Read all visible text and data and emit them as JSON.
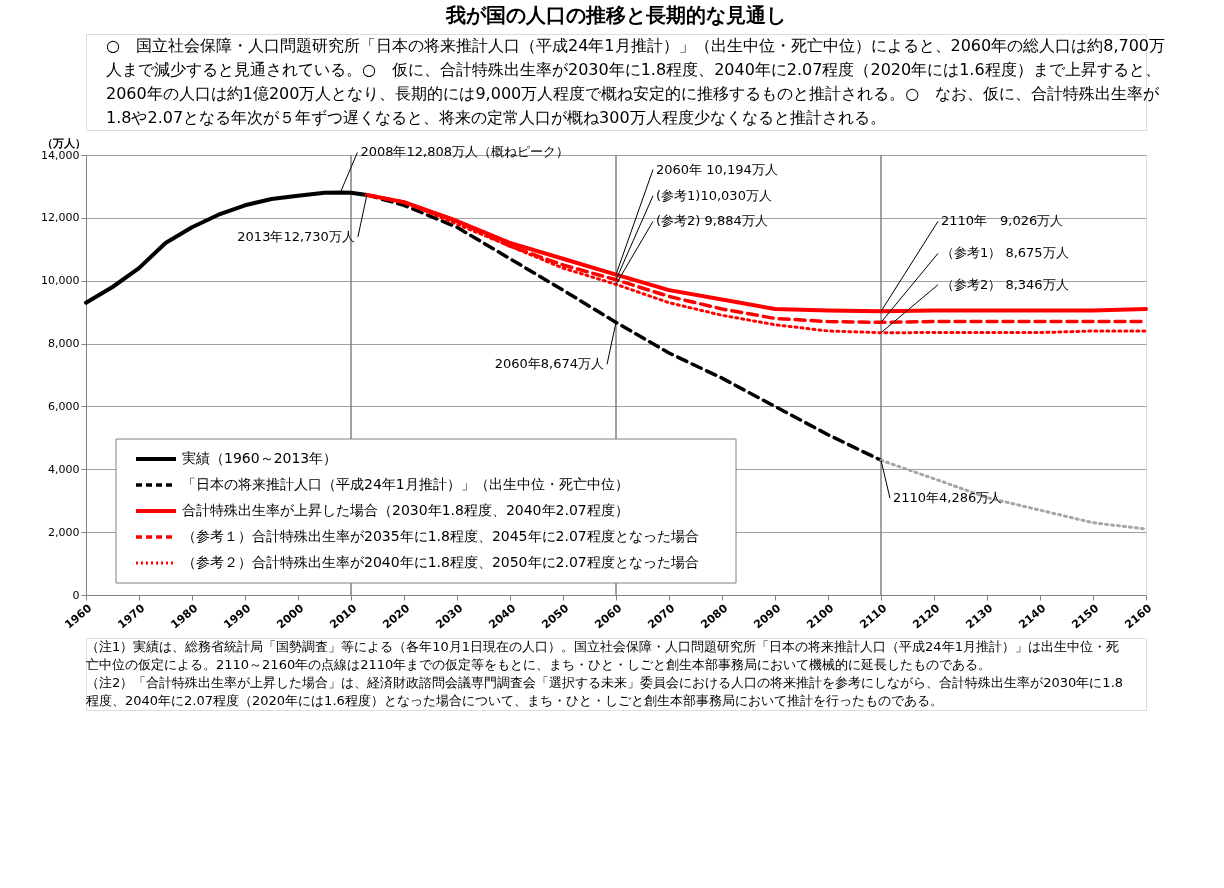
{
  "chart_data": {
    "type": "line",
    "title": "我が国の人口の推移と長期的な見通し",
    "subtitle": "○　国立社会保障・人口問題研究所「日本の将来推計人口（平成24年1月推計）」（出生中位・死亡中位）によると、2060年の総人口は約8,700万人まで減少すると見通されている。○　仮に、合計特殊出生率が2030年に1.8程度、2040年に2.07程度（2020年には1.6程度）まで上昇すると、2060年の人口は約1億200万人となり、長期的には9,000万人程度で概ね安定的に推移するものと推計される。○　なお、仮に、合計特殊出生率が1.8や2.07となる年次が５年ずつ遅くなると、将来の定常人口が概ね300万人程度少なくなると推計される。",
    "ylabel": "（万人）",
    "xlim": [
      1960,
      2160
    ],
    "xticks": [
      1960,
      1970,
      1980,
      1990,
      2000,
      2010,
      2020,
      2030,
      2040,
      2050,
      2060,
      2070,
      2080,
      2090,
      2100,
      2110,
      2120,
      2130,
      2140,
      2150,
      2160
    ],
    "ylim": [
      0,
      14000
    ],
    "yticks": [
      0,
      {
        "value": 2000,
        "label": "2,000"
      },
      {
        "value": 4000,
        "label": "4,000"
      },
      {
        "value": 6000,
        "label": "6,000"
      },
      {
        "value": 8000,
        "label": "8,000"
      },
      {
        "value": 10000,
        "label": "10,000"
      },
      {
        "value": 12000,
        "label": "12,000"
      },
      {
        "value": 14000,
        "label": "14,000"
      }
    ],
    "grid": "y",
    "legend": "bottom left",
    "series": [
      {
        "name": "実績（1960～2013年）",
        "color": "#000000",
        "line_style": "solid",
        "x": [
          1960,
          1965,
          1970,
          1975,
          1980,
          1985,
          1990,
          1995,
          2000,
          2005,
          2008,
          2010,
          2013
        ],
        "values": [
          9300,
          9800,
          10400,
          11200,
          11700,
          12100,
          12400,
          12600,
          12700,
          12800,
          12808,
          12800,
          12730
        ]
      },
      {
        "name": "「日本の将来推計人口（平成24年1月推計）」（出生中位・死亡中位）",
        "color": "#000000",
        "line_style": "dashed",
        "x": [
          2013,
          2020,
          2030,
          2040,
          2050,
          2060,
          2070,
          2080,
          2090,
          2100,
          2110
        ],
        "values": [
          12730,
          12400,
          11700,
          10700,
          9700,
          8674,
          7700,
          6900,
          6000,
          5100,
          4286
        ]
      },
      {
        "color": "#a6a6a6",
        "line_style": "dotted",
        "x": [
          2110,
          2120,
          2130,
          2140,
          2150,
          2160
        ],
        "values": [
          4286,
          3700,
          3100,
          2700,
          2300,
          2100
        ]
      },
      {
        "name": "合計特殊出生率が上昇した場合（2030年1.8程度、2040年2.07程度）",
        "color": "#ff0000",
        "line_style": "solid",
        "x": [
          2013,
          2020,
          2030,
          2040,
          2050,
          2060,
          2070,
          2080,
          2090,
          2100,
          2110,
          2120,
          2130,
          2140,
          2150,
          2160
        ],
        "values": [
          12730,
          12500,
          11900,
          11200,
          10700,
          10194,
          9700,
          9400,
          9100,
          9050,
          9026,
          9050,
          9050,
          9050,
          9050,
          9100
        ]
      },
      {
        "name": "（参考１）合計特殊出生率が2035年に1.8程度、2045年に2.07程度となった場合",
        "color": "#ff0000",
        "line_style": "dashed",
        "x": [
          2013,
          2020,
          2030,
          2040,
          2050,
          2060,
          2070,
          2080,
          2090,
          2100,
          2110,
          2120,
          2130,
          2140,
          2150,
          2160
        ],
        "values": [
          12730,
          12500,
          11900,
          11100,
          10500,
          10030,
          9500,
          9100,
          8800,
          8700,
          8675,
          8700,
          8700,
          8700,
          8700,
          8700
        ]
      },
      {
        "name": "（参考２）合計特殊出生率が2040年に1.8程度、2050年に2.07程度となった場合",
        "color": "#ff0000",
        "line_style": "dotted",
        "x": [
          2013,
          2020,
          2030,
          2040,
          2050,
          2060,
          2070,
          2080,
          2090,
          2100,
          2110,
          2120,
          2130,
          2140,
          2150,
          2160
        ],
        "values": [
          12730,
          12500,
          11800,
          11100,
          10400,
          9884,
          9300,
          8900,
          8600,
          8400,
          8346,
          8350,
          8350,
          8350,
          8400,
          8400
        ]
      }
    ],
    "ref_lines": [
      {
        "axis": "x",
        "value": 2010,
        "color": "#808080"
      },
      {
        "axis": "x",
        "value": 2060,
        "color": "#808080"
      },
      {
        "axis": "x",
        "value": 2110,
        "color": "#808080"
      }
    ],
    "annotations": [
      {
        "text": "2008年12,808万人（概ねピーク）",
        "x": 2008,
        "y": 12808
      },
      {
        "text": "2013年12,730万人",
        "x": 2013,
        "y": 12730
      },
      {
        "text": "2060年8,674万人",
        "x": 2060,
        "y": 8674
      },
      {
        "text": "2110年4,286万人",
        "x": 2110,
        "y": 4286
      },
      {
        "text": "2060年 10,194万人",
        "x": 2060,
        "y": 10194
      },
      {
        "text": "(参考1)10,030万人",
        "x": 2060,
        "y": 10030
      },
      {
        "text": "(参考2) 9,884万人",
        "x": 2060,
        "y": 9884
      },
      {
        "text": "2110年　9,026万人",
        "x": 2110,
        "y": 9026
      },
      {
        "text": "（参考1） 8,675万人",
        "x": 2110,
        "y": 8675
      },
      {
        "text": "（参考2） 8,346万人",
        "x": 2110,
        "y": 8346
      },
      "（注1）実績は、総務省統計局「国勢調査」等による（各年10月1日現在の人口）。国立社会保障・人口問題研究所「日本の将来推計人口（平成24年1月推計）」は出生中位・死亡中位の仮定による。2110～2160年の点線は2110年までの仮定等をもとに、まち・ひと・しごと創生本部事務局において機械的に延長したものである。",
      "（注2）「合計特殊出生率が上昇した場合」は、経済財政諮問会議専門調査会「選択する未来」委員会における人口の将来推計を参考にしながら、合計特殊出生率が2030年に1.8程度、2040年に2.07程度（2020年には1.6程度）となった場合について、まち・ひと・しごと創生本部事務局において推計を行ったものである。"
    ]
  }
}
